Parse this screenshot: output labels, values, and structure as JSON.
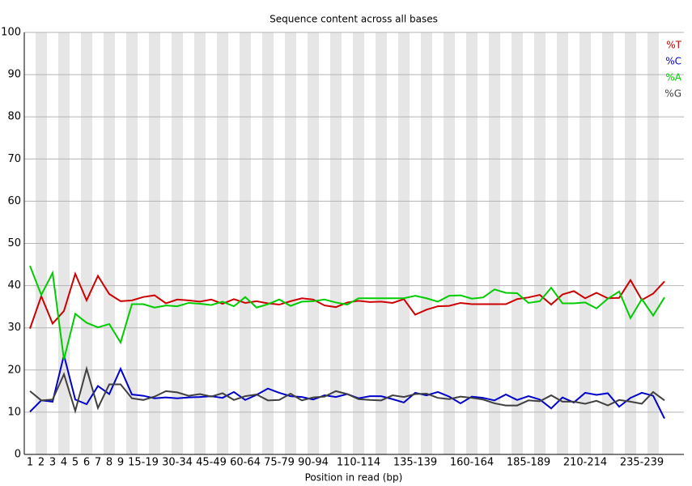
{
  "chart_data": {
    "type": "line",
    "title": "Sequence content across all bases",
    "x_label": "Position in read (bp)",
    "categories": [
      "1",
      "2",
      "3",
      "4",
      "5",
      "6",
      "7",
      "8",
      "9",
      null,
      "15-19",
      null,
      null,
      "30-34",
      null,
      null,
      "45-49",
      null,
      null,
      "60-64",
      null,
      null,
      "75-79",
      null,
      null,
      "90-94",
      null,
      null,
      null,
      "110-114",
      null,
      null,
      null,
      null,
      "135-139",
      null,
      null,
      null,
      null,
      "160-164",
      null,
      null,
      null,
      null,
      "185-189",
      null,
      null,
      null,
      null,
      "210-214",
      null,
      null,
      null,
      null,
      "235-239",
      null,
      null
    ],
    "series": [
      {
        "name": "%T",
        "color": "#cc0000",
        "values": [
          29.8,
          37.5,
          31,
          34,
          42.8,
          36.5,
          42.3,
          38,
          36.3,
          36.5,
          37.3,
          37.7,
          35.8,
          36.7,
          36.5,
          36.2,
          36.7,
          35.7,
          36.8,
          35.9,
          36.3,
          35.8,
          35.5,
          36.3,
          37,
          36.7,
          35.3,
          34.9,
          36,
          36.4,
          36.1,
          36.2,
          35.9,
          36.8,
          33.1,
          34.3,
          35.1,
          35.2,
          35.9,
          35.6,
          35.6,
          35.6,
          35.6,
          36.8,
          37.2,
          37.8,
          35.5,
          37.9,
          38.7,
          37,
          38.3,
          37,
          37.1,
          41.3,
          36.6,
          38.1,
          41
        ]
      },
      {
        "name": "%C",
        "color": "#0000cc",
        "values": [
          10.1,
          12.8,
          12.5,
          23.5,
          13,
          11.9,
          16.2,
          14.3,
          20.3,
          14.2,
          13.9,
          13.3,
          13.5,
          13.3,
          13.5,
          13.6,
          13.8,
          13.4,
          14.8,
          12.9,
          14.1,
          15.6,
          14.6,
          13.8,
          13.6,
          13,
          14,
          13.6,
          14.3,
          13.3,
          13.8,
          13.8,
          13.1,
          12.3,
          14.6,
          14,
          14.8,
          13.7,
          12.1,
          13.7,
          13.4,
          12.8,
          14.2,
          12.9,
          13.8,
          13,
          10.9,
          13.5,
          12.3,
          14.6,
          14.1,
          14.5,
          11.3,
          13.4,
          14.6,
          13.9,
          8.5
        ]
      },
      {
        "name": "%A",
        "color": "#00cc00",
        "values": [
          44.7,
          37.8,
          43,
          22.5,
          33.3,
          31.2,
          30.1,
          30.9,
          26.5,
          35.6,
          35.6,
          34.8,
          35.3,
          35.1,
          35.9,
          35.7,
          35.4,
          36.2,
          35.1,
          37.3,
          34.8,
          35.6,
          36.7,
          35.2,
          36.2,
          36.3,
          36.7,
          36,
          35.5,
          37,
          37,
          37,
          37,
          37,
          37.6,
          37,
          36.2,
          37.6,
          37.7,
          36.9,
          37.2,
          39.1,
          38.3,
          38.2,
          35.9,
          36.3,
          39.5,
          35.8,
          35.8,
          36,
          34.6,
          36.9,
          38.6,
          32.3,
          36.8,
          32.9,
          37.2
        ]
      },
      {
        "name": "%G",
        "color": "#404040",
        "values": [
          15,
          12.8,
          13,
          19,
          10.3,
          20.3,
          11,
          16.6,
          16.6,
          13.3,
          12.9,
          13.7,
          15,
          14.7,
          13.9,
          14.3,
          13.7,
          14.5,
          12.9,
          13.8,
          14.2,
          12.8,
          12.9,
          14.4,
          12.8,
          13.5,
          13.7,
          15,
          14.3,
          13.1,
          12.9,
          12.8,
          14,
          13.6,
          14.3,
          14.4,
          13.4,
          13.1,
          13.7,
          13.4,
          13,
          12.1,
          11.6,
          11.6,
          12.8,
          12.6,
          14,
          12.5,
          12.5,
          12,
          12.7,
          11.6,
          12.9,
          12.5,
          12,
          14.8,
          12.8
        ]
      }
    ],
    "ylim": [
      0,
      100
    ],
    "yticks": [
      0,
      10,
      20,
      30,
      40,
      50,
      60,
      70,
      80,
      90,
      100
    ],
    "grid": true,
    "legend": "top-right"
  }
}
